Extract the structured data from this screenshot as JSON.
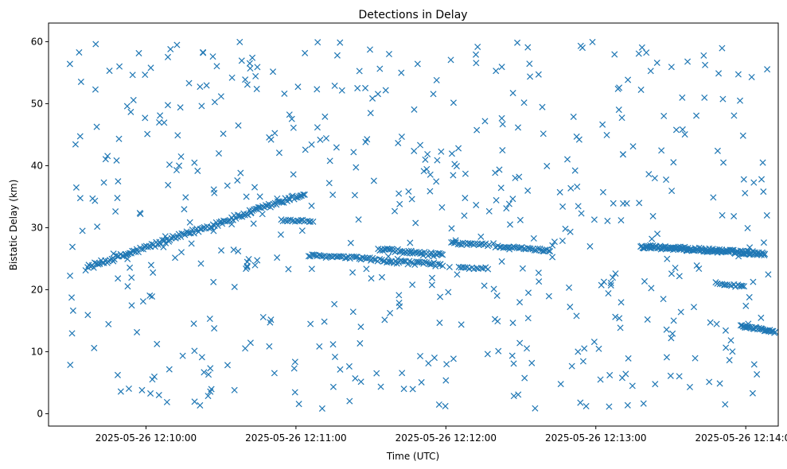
{
  "chart_data": {
    "type": "scatter",
    "title": "Detections in Delay",
    "xlabel": "Time (UTC)",
    "ylabel": "Bistatic Delay (km)",
    "marker": "x",
    "color": "#1f77b4",
    "grid": false,
    "legend": "none",
    "x_unit": "time",
    "x_range": [
      "2025-05-26 12:09:21",
      "2025-05-26 12:14:13"
    ],
    "y_range": [
      -2,
      63
    ],
    "x_ticks": [
      "2025-05-26 12:10:00",
      "2025-05-26 12:11:00",
      "2025-05-26 12:12:00",
      "2025-05-26 12:13:00",
      "2025-05-26 12:14:00"
    ],
    "y_ticks": [
      0,
      10,
      20,
      30,
      40,
      50,
      60
    ],
    "clusters": [
      {
        "structure": "ramp",
        "from": [
          "2025-05-26 12:09:36",
          23.5
        ],
        "to": [
          "2025-05-26 12:11:04",
          35.5
        ],
        "step_s": 0.6,
        "jitter_km": 0.4
      },
      {
        "structure": "plateau",
        "from": [
          "2025-05-26 12:10:54",
          31.2
        ],
        "to": [
          "2025-05-26 12:11:07",
          31.0
        ],
        "step_s": 0.8,
        "jitter_km": 0.2
      },
      {
        "structure": "ramp",
        "from": [
          "2025-05-26 12:11:05",
          25.5
        ],
        "to": [
          "2025-05-26 12:11:30",
          25.0
        ],
        "step_s": 0.7,
        "jitter_km": 0.2
      },
      {
        "structure": "ramp",
        "from": [
          "2025-05-26 12:11:33",
          26.5
        ],
        "to": [
          "2025-05-26 12:11:59",
          25.5
        ],
        "step_s": 0.6,
        "jitter_km": 0.3
      },
      {
        "structure": "ramp",
        "from": [
          "2025-05-26 12:11:30",
          24.8
        ],
        "to": [
          "2025-05-26 12:11:59",
          24.0
        ],
        "step_s": 0.7,
        "jitter_km": 0.3
      },
      {
        "structure": "ramp",
        "from": [
          "2025-05-26 12:12:02",
          27.5
        ],
        "to": [
          "2025-05-26 12:12:18",
          27.2
        ],
        "step_s": 0.7,
        "jitter_km": 0.2
      },
      {
        "structure": "ramp",
        "from": [
          "2025-05-26 12:12:05",
          23.6
        ],
        "to": [
          "2025-05-26 12:12:17",
          23.4
        ],
        "step_s": 0.9,
        "jitter_km": 0.2
      },
      {
        "structure": "ramp",
        "from": [
          "2025-05-26 12:12:20",
          27.0
        ],
        "to": [
          "2025-05-26 12:12:42",
          26.3
        ],
        "step_s": 0.7,
        "jitter_km": 0.2
      },
      {
        "structure": "ramp",
        "from": [
          "2025-05-26 12:13:18",
          27.0
        ],
        "to": [
          "2025-05-26 12:14:08",
          25.8
        ],
        "step_s": 0.35,
        "jitter_km": 0.3
      },
      {
        "structure": "ramp",
        "from": [
          "2025-05-26 12:13:48",
          21.0
        ],
        "to": [
          "2025-05-26 12:14:00",
          20.5
        ],
        "step_s": 0.8,
        "jitter_km": 0.2
      },
      {
        "structure": "ramp",
        "from": [
          "2025-05-26 12:13:58",
          14.2
        ],
        "to": [
          "2025-05-26 12:14:24",
          12.3
        ],
        "step_s": 0.45,
        "jitter_km": 0.2
      }
    ],
    "noise": {
      "count": 560,
      "x_range": [
        "2025-05-26 12:09:28",
        "2025-05-26 12:14:25"
      ],
      "y_range": [
        0.8,
        60
      ],
      "distribution": "uniform"
    }
  }
}
